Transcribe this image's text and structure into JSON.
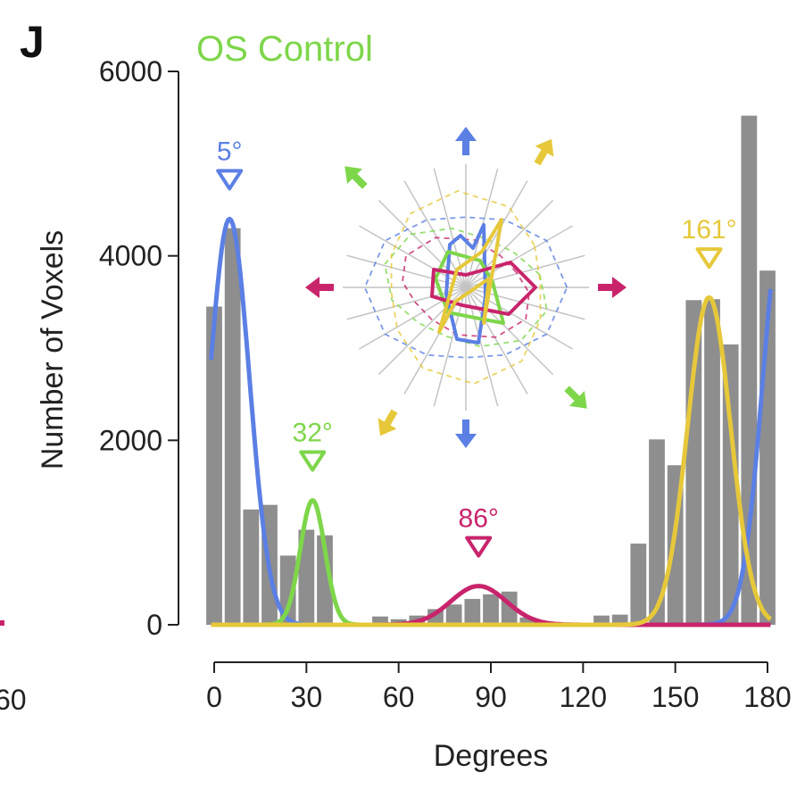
{
  "panel_letter": "J",
  "edge_fragment": "60",
  "chart_data": {
    "type": "bar",
    "title": "OS Control",
    "xlabel": "Degrees",
    "ylabel": "Number of Voxels",
    "xlim": [
      0,
      180
    ],
    "ylim": [
      0,
      6000
    ],
    "x_ticks": [
      0,
      30,
      60,
      90,
      120,
      150,
      180
    ],
    "y_ticks": [
      0,
      2000,
      4000,
      6000
    ],
    "grid": false,
    "bar_color": "#8e8e8e",
    "histogram": {
      "bin_width": 6,
      "centers": [
        0,
        6,
        12,
        18,
        24,
        30,
        36,
        42,
        48,
        54,
        60,
        66,
        72,
        78,
        84,
        90,
        96,
        102,
        108,
        114,
        120,
        126,
        132,
        138,
        144,
        150,
        156,
        162,
        168,
        174,
        180
      ],
      "values": [
        3450,
        4300,
        1250,
        1300,
        750,
        1030,
        970,
        0,
        0,
        90,
        60,
        100,
        170,
        220,
        280,
        330,
        360,
        80,
        0,
        0,
        0,
        100,
        110,
        880,
        2010,
        1730,
        3520,
        3530,
        3040,
        5520,
        3840
      ]
    },
    "fits": [
      {
        "peak_label": "5°",
        "color": "#5b7fe4",
        "mean": 5,
        "sd": 6.5,
        "amp": 4400,
        "wrap": true
      },
      {
        "peak_label": "32°",
        "color": "#7ed64a",
        "mean": 32,
        "sd": 4,
        "amp": 1350,
        "wrap": false
      },
      {
        "peak_label": "86°",
        "color": "#c8246c",
        "mean": 86,
        "sd": 9,
        "amp": 420,
        "wrap": false
      },
      {
        "peak_label": "161°",
        "color": "#e6c83a",
        "mean": 161,
        "sd": 7,
        "amp": 3550,
        "wrap": false
      }
    ],
    "inset_polar": {
      "axes_count": 12,
      "arrows": [
        {
          "angle": 0,
          "color": "#c8246c"
        },
        {
          "angle": 180,
          "color": "#c8246c"
        },
        {
          "angle": 90,
          "color": "#5b7fe4"
        },
        {
          "angle": 270,
          "color": "#5b7fe4"
        },
        {
          "angle": 60,
          "color": "#e6c83a"
        },
        {
          "angle": 240,
          "color": "#e6c83a"
        },
        {
          "angle": 135,
          "color": "#7ed64a"
        },
        {
          "angle": 315,
          "color": "#7ed64a"
        }
      ]
    }
  }
}
